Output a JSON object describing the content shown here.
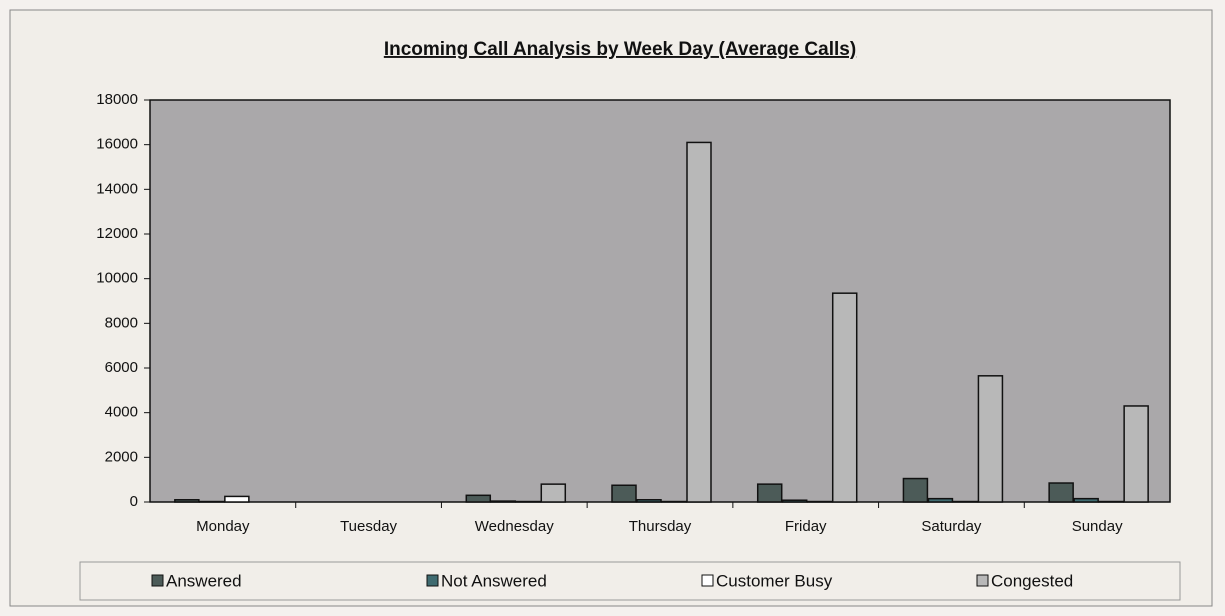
{
  "chart_data": {
    "type": "bar",
    "title": "Incoming Call Analysis by Week Day (Average Calls)",
    "categories": [
      "Monday",
      "Tuesday",
      "Wednesday",
      "Thursday",
      "Friday",
      "Saturday",
      "Sunday"
    ],
    "series": [
      {
        "name": "Answered",
        "color": "#4c5b58",
        "values": [
          100,
          0,
          300,
          750,
          800,
          1050,
          850
        ]
      },
      {
        "name": "Not Answered",
        "color": "#3f6b70",
        "values": [
          20,
          0,
          40,
          100,
          80,
          150,
          150
        ]
      },
      {
        "name": "Customer Busy",
        "color": "#ffffff",
        "values": [
          250,
          0,
          20,
          20,
          20,
          20,
          20
        ]
      },
      {
        "name": "Congested",
        "color": "#b8b8b8",
        "values": [
          0,
          0,
          800,
          16100,
          9350,
          5650,
          4300
        ]
      }
    ],
    "ylim": [
      0,
      18000
    ],
    "yticks": [
      0,
      2000,
      4000,
      6000,
      8000,
      10000,
      12000,
      14000,
      16000,
      18000
    ],
    "legend": "bottom"
  }
}
